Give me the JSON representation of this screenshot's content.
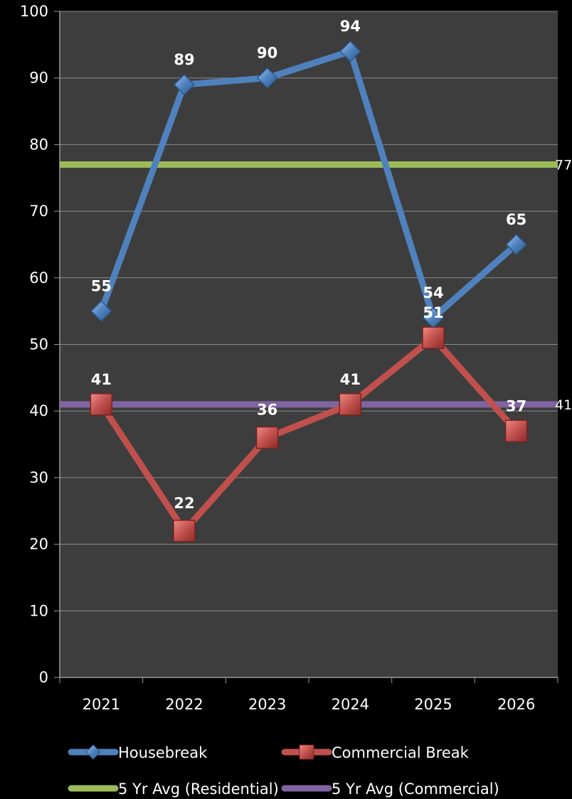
{
  "chart_data": {
    "type": "line",
    "categories": [
      "2021",
      "2022",
      "2023",
      "2024",
      "2025",
      "2026"
    ],
    "ylim": [
      0,
      100
    ],
    "yticks": [
      "0",
      "10",
      "20",
      "30",
      "40",
      "50",
      "60",
      "70",
      "80",
      "90",
      "100"
    ],
    "grid": true,
    "legend_position": "bottom",
    "plot_background": "#3d3d3d",
    "series": [
      {
        "name": "Housebreak",
        "values": [
          55,
          89,
          90,
          94,
          54,
          65
        ],
        "color": "#4f81bd",
        "marker": "diamond"
      },
      {
        "name": "Commercial Break",
        "values": [
          41,
          22,
          36,
          41,
          51,
          37
        ],
        "color": "#c0504d",
        "marker": "square"
      }
    ],
    "reference_lines": [
      {
        "name": "5 Yr Avg (Residential)",
        "value": 77,
        "color": "#9bbb59"
      },
      {
        "name": "5 Yr Avg (Commercial)",
        "value": 41,
        "color": "#8064a2"
      }
    ]
  }
}
